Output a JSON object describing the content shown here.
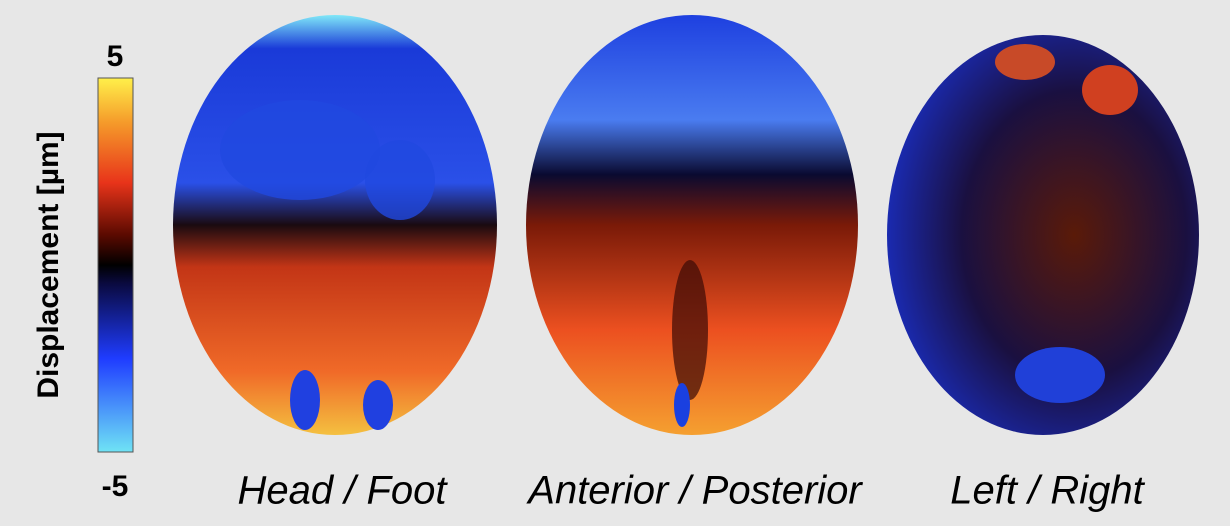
{
  "colorbar": {
    "label": "Displacement [µm]",
    "max": 5,
    "min": -5
  },
  "panels": [
    {
      "label": "Head / Foot"
    },
    {
      "label": "Anterior / Posterior"
    },
    {
      "label": "Left / Right"
    }
  ]
}
